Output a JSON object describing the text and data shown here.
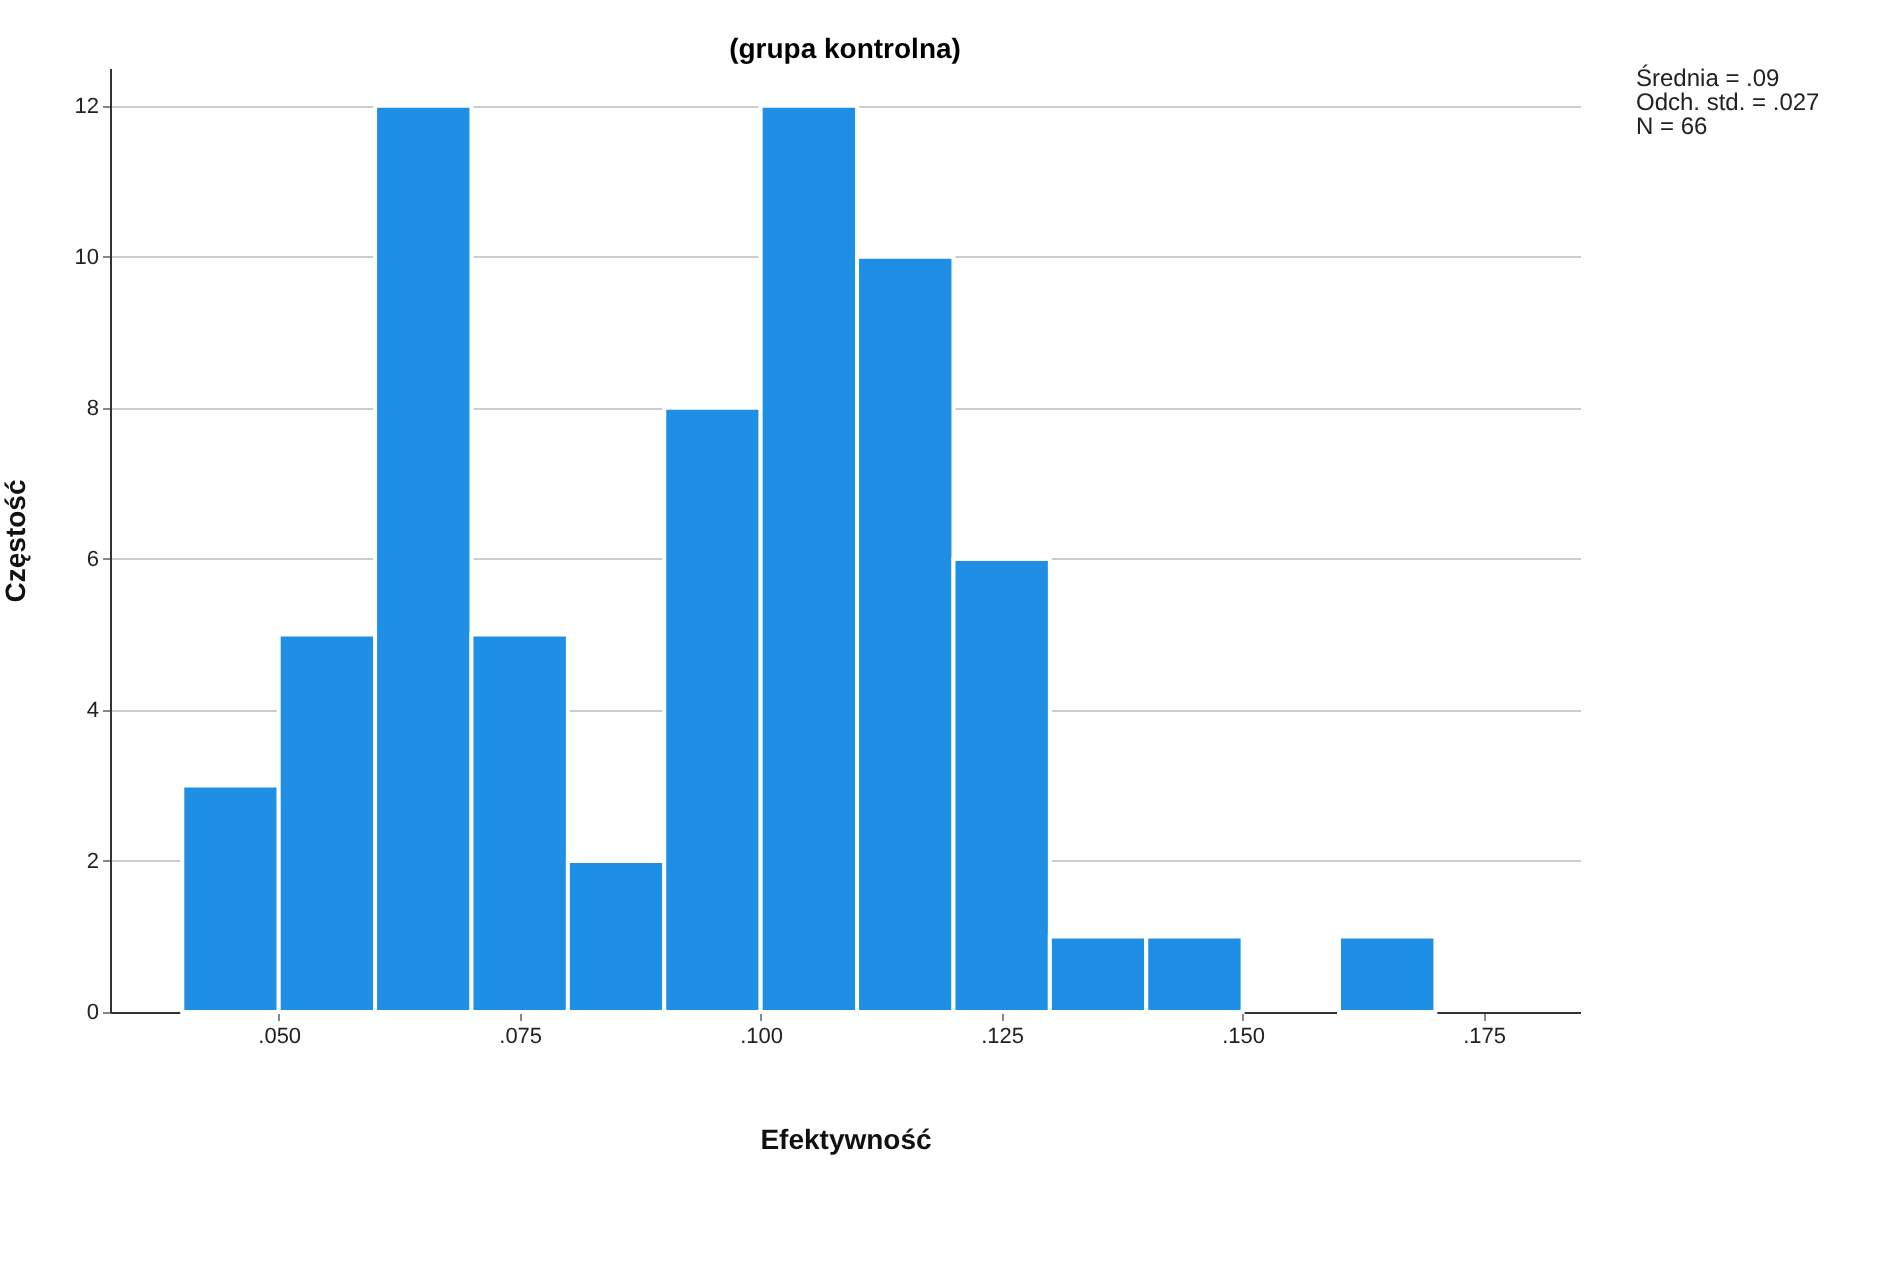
{
  "chart_data": {
    "type": "histogram",
    "title": "(grupa kontrolna)",
    "xlabel": "Efektywność",
    "ylabel": "Częstość",
    "bins": [
      0.04,
      0.05,
      0.06,
      0.07,
      0.08,
      0.09,
      0.1,
      0.11,
      0.12,
      0.13,
      0.14,
      0.15,
      0.16,
      0.17
    ],
    "values": [
      3,
      5,
      12,
      5,
      2,
      8,
      12,
      10,
      6,
      1,
      1,
      0,
      1
    ],
    "color": "#1f8fe5",
    "xlim": [
      0.0325,
      0.185
    ],
    "xticks": [
      {
        "value": 0.05,
        "label": ".050"
      },
      {
        "value": 0.075,
        "label": ".075"
      },
      {
        "value": 0.1,
        "label": ".100"
      },
      {
        "value": 0.125,
        "label": ".125"
      },
      {
        "value": 0.15,
        "label": ".150"
      },
      {
        "value": 0.175,
        "label": ".175"
      }
    ],
    "ylim": [
      0,
      12.5
    ],
    "yticks": [
      0,
      2,
      4,
      6,
      8,
      10,
      12
    ],
    "grid": "y",
    "annotations": [
      "Średnia = .09",
      "Odch. std. = .027",
      "N = 66"
    ]
  }
}
